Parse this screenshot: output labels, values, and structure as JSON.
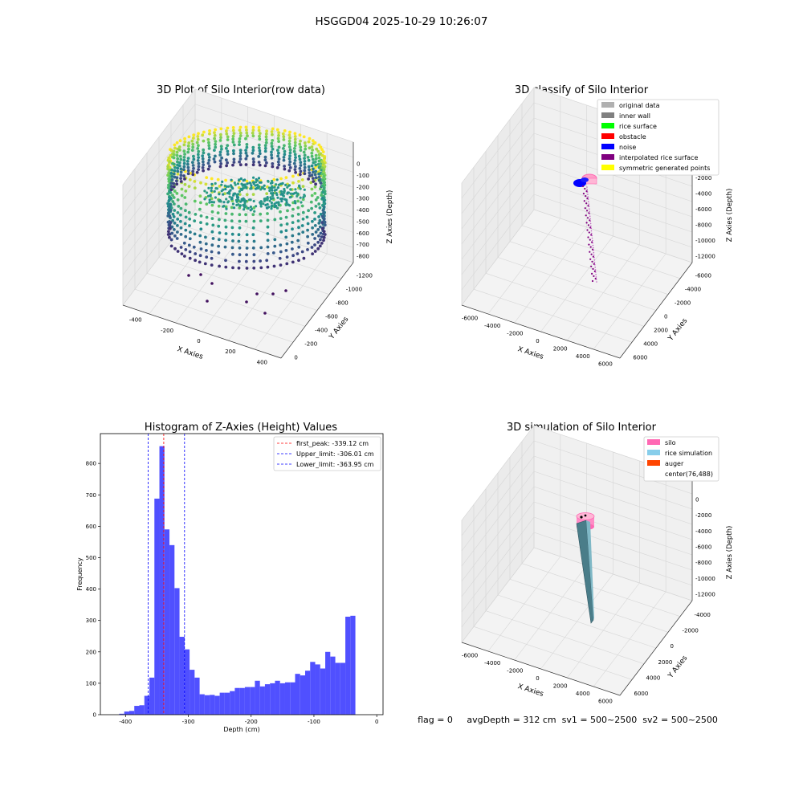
{
  "figure": {
    "suptitle": "HSGGD04 2025-10-29 10:26:07",
    "status_line": "flag = 0     avgDepth = 312 cm  sv1 = 500~2500  sv2 = 500~2500"
  },
  "chart_data": [
    {
      "type": "scatter",
      "projection": "3d",
      "title": "3D Plot of Silo Interior(row data)",
      "xlabel": "X Axies",
      "ylabel": "Y Axies",
      "zlabel": "Z Axies (Depth)",
      "xticks": [
        -400,
        -200,
        0,
        200,
        400
      ],
      "yticks": [
        0,
        -200,
        -400,
        -600,
        -800,
        -1000,
        -1200
      ],
      "zticks": [
        0,
        -100,
        -200,
        -300,
        -400,
        -500,
        -600,
        -700,
        -800
      ],
      "xlim": [
        -480,
        480
      ],
      "ylim": [
        -1250,
        100
      ],
      "zlim": [
        -850,
        30
      ],
      "colormap": "viridis",
      "grid": true
    },
    {
      "type": "scatter",
      "projection": "3d",
      "title": "3D classify of Silo Interior",
      "xlabel": "X Axies",
      "ylabel": "Y Axies",
      "zlabel": "Z Axies (Depth)",
      "xticks": [
        -6000,
        -4000,
        -2000,
        0,
        2000,
        4000,
        6000
      ],
      "yticks": [
        6000,
        4000,
        2000,
        0,
        -2000,
        -4000,
        -6000
      ],
      "zticks": [
        0,
        -2000,
        -4000,
        -6000,
        -8000,
        -10000,
        -12000
      ],
      "legend_position": "top-right",
      "legend": [
        {
          "label": "original data",
          "color": "#b0b0b0"
        },
        {
          "label": "inner wall",
          "color": "#808080"
        },
        {
          "label": "rice surface",
          "color": "#00ff00"
        },
        {
          "label": "obstacle",
          "color": "#ff0000"
        },
        {
          "label": "noise",
          "color": "#0000ff"
        },
        {
          "label": "interpolated rice surface",
          "color": "#800080"
        },
        {
          "label": "symmetric generated points",
          "color": "#ffff00"
        }
      ],
      "grid": true
    },
    {
      "type": "bar",
      "title": "Histogram of Z-Axies (Height) Values",
      "xlabel": "Depth (cm)",
      "ylabel": "Frequency",
      "xticks": [
        -400,
        -300,
        -200,
        -100,
        0
      ],
      "yticks": [
        0,
        100,
        200,
        300,
        400,
        500,
        600,
        700,
        800
      ],
      "xlim": [
        -440,
        10
      ],
      "ylim": [
        0,
        895
      ],
      "bin_start": -410,
      "bin_width": 8,
      "bar_color": "#5050ff",
      "values": [
        3,
        10,
        12,
        28,
        30,
        60,
        118,
        688,
        855,
        590,
        540,
        403,
        248,
        208,
        143,
        118,
        65,
        62,
        63,
        60,
        70,
        70,
        75,
        85,
        85,
        88,
        88,
        108,
        90,
        97,
        100,
        108,
        100,
        103,
        103,
        130,
        125,
        140,
        168,
        160,
        147,
        200,
        185,
        165,
        165,
        312,
        315
      ],
      "lines": [
        {
          "label": "first_peak: -339.12 cm",
          "x": -339.12,
          "color": "#ff0000"
        },
        {
          "label": "Upper_limit: -306.01 cm",
          "x": -306.01,
          "color": "#0000ff"
        },
        {
          "label": "Lower_limit: -363.95 cm",
          "x": -363.95,
          "color": "#0000ff"
        }
      ],
      "legend_position": "top-right"
    },
    {
      "type": "scatter",
      "projection": "3d",
      "title": "3D simulation of Silo Interior",
      "xlabel": "X Axies",
      "ylabel": "Y Axies",
      "zlabel": "Z Axies (Depth)",
      "xticks": [
        -6000,
        -4000,
        -2000,
        0,
        2000,
        4000,
        6000
      ],
      "yticks": [
        6000,
        4000,
        2000,
        0,
        -2000,
        -4000
      ],
      "zticks": [
        0,
        -2000,
        -4000,
        -6000,
        -8000,
        -10000,
        -12000
      ],
      "legend_position": "top-right",
      "legend": [
        {
          "label": "silo",
          "color": "#ff69b4"
        },
        {
          "label": "rice simulation",
          "color": "#87ceeb"
        },
        {
          "label": "auger",
          "color": "#ff4500"
        },
        {
          "label": "center(76,488)",
          "color": ""
        }
      ],
      "grid": true
    }
  ]
}
